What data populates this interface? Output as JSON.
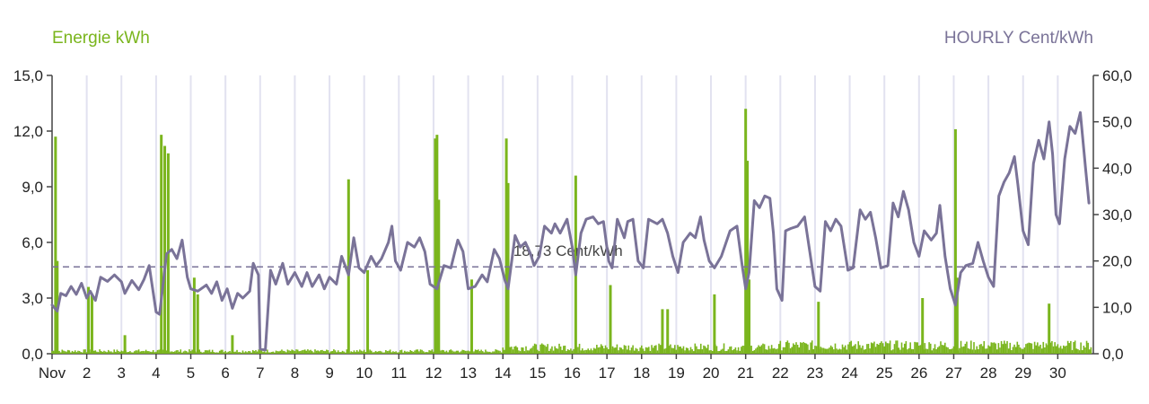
{
  "chart_data": {
    "type": "bar+line",
    "left_axis": {
      "title": "Energie kWh",
      "ticks": [
        "0,0",
        "3,0",
        "6,0",
        "9,0",
        "12,0",
        "15,0"
      ],
      "range": [
        0,
        15
      ]
    },
    "right_axis": {
      "title": "HOURLY Cent/kWh",
      "ticks": [
        "0,0",
        "10,0",
        "20,0",
        "30,0",
        "40,0",
        "50,0",
        "60,0"
      ],
      "range": [
        0,
        60
      ]
    },
    "x_ticks": [
      "Nov",
      "2",
      "3",
      "4",
      "5",
      "6",
      "7",
      "8",
      "9",
      "10",
      "11",
      "12",
      "13",
      "14",
      "15",
      "16",
      "17",
      "18",
      "19",
      "20",
      "21",
      "22",
      "23",
      "24",
      "25",
      "26",
      "27",
      "28",
      "29",
      "30"
    ],
    "average": {
      "value": 18.73,
      "label": "18,73 Cent/kWh"
    },
    "colors": {
      "energy": "#7ab51d",
      "price": "#7a7398",
      "grid": "#e2e2f0",
      "average": "#7a7398"
    },
    "series": [
      {
        "name": "Energie kWh",
        "axis": "left",
        "spikes": [
          {
            "day": 1.1,
            "value": 11.7
          },
          {
            "day": 1.15,
            "value": 5.0
          },
          {
            "day": 2.05,
            "value": 3.6
          },
          {
            "day": 2.15,
            "value": 3.2
          },
          {
            "day": 3.1,
            "value": 1.0
          },
          {
            "day": 4.15,
            "value": 11.8
          },
          {
            "day": 4.25,
            "value": 11.2
          },
          {
            "day": 4.35,
            "value": 10.8
          },
          {
            "day": 5.1,
            "value": 4.1
          },
          {
            "day": 5.2,
            "value": 3.2
          },
          {
            "day": 6.2,
            "value": 1.0
          },
          {
            "day": 9.55,
            "value": 9.4
          },
          {
            "day": 10.1,
            "value": 4.5
          },
          {
            "day": 12.05,
            "value": 11.6
          },
          {
            "day": 12.1,
            "value": 11.8
          },
          {
            "day": 12.15,
            "value": 8.3
          },
          {
            "day": 13.1,
            "value": 4.0
          },
          {
            "day": 14.1,
            "value": 11.6
          },
          {
            "day": 14.15,
            "value": 9.2
          },
          {
            "day": 16.1,
            "value": 9.6
          },
          {
            "day": 17.1,
            "value": 3.7
          },
          {
            "day": 18.6,
            "value": 2.4
          },
          {
            "day": 18.75,
            "value": 2.4
          },
          {
            "day": 20.1,
            "value": 3.2
          },
          {
            "day": 21.0,
            "value": 13.2
          },
          {
            "day": 21.05,
            "value": 10.4
          },
          {
            "day": 21.1,
            "value": 4.0
          },
          {
            "day": 23.1,
            "value": 2.8
          },
          {
            "day": 26.1,
            "value": 3.0
          },
          {
            "day": 27.05,
            "value": 12.1
          },
          {
            "day": 27.1,
            "value": 4.1
          },
          {
            "day": 29.75,
            "value": 2.7
          }
        ]
      },
      {
        "name": "HOURLY Cent/kWh",
        "axis": "right",
        "points": [
          [
            1.0,
            10.5
          ],
          [
            1.15,
            9.2
          ],
          [
            1.25,
            13.0
          ],
          [
            1.4,
            12.5
          ],
          [
            1.55,
            14.5
          ],
          [
            1.7,
            12.8
          ],
          [
            1.85,
            15.2
          ],
          [
            2.0,
            12.0
          ],
          [
            2.1,
            13.5
          ],
          [
            2.25,
            11.5
          ],
          [
            2.4,
            16.5
          ],
          [
            2.6,
            15.6
          ],
          [
            2.8,
            17.0
          ],
          [
            3.0,
            15.5
          ],
          [
            3.1,
            13.0
          ],
          [
            3.3,
            15.8
          ],
          [
            3.5,
            13.8
          ],
          [
            3.65,
            16.0
          ],
          [
            3.8,
            19.0
          ],
          [
            4.0,
            9.0
          ],
          [
            4.1,
            8.5
          ],
          [
            4.3,
            21.5
          ],
          [
            4.45,
            22.5
          ],
          [
            4.6,
            20.5
          ],
          [
            4.75,
            24.5
          ],
          [
            4.9,
            16.5
          ],
          [
            5.0,
            14.0
          ],
          [
            5.2,
            13.5
          ],
          [
            5.45,
            14.8
          ],
          [
            5.6,
            13.0
          ],
          [
            5.75,
            15.5
          ],
          [
            5.9,
            11.5
          ],
          [
            6.05,
            14.0
          ],
          [
            6.2,
            9.8
          ],
          [
            6.35,
            13.0
          ],
          [
            6.5,
            12.0
          ],
          [
            6.7,
            13.5
          ],
          [
            6.8,
            19.5
          ],
          [
            6.95,
            17.0
          ],
          [
            7.0,
            1.0
          ],
          [
            7.15,
            0.8
          ],
          [
            7.3,
            18.0
          ],
          [
            7.45,
            15.0
          ],
          [
            7.65,
            19.5
          ],
          [
            7.8,
            15.0
          ],
          [
            8.0,
            17.5
          ],
          [
            8.2,
            14.5
          ],
          [
            8.35,
            17.5
          ],
          [
            8.5,
            14.5
          ],
          [
            8.7,
            17.0
          ],
          [
            8.85,
            14.0
          ],
          [
            9.0,
            16.5
          ],
          [
            9.2,
            15.0
          ],
          [
            9.35,
            21.0
          ],
          [
            9.55,
            17.0
          ],
          [
            9.7,
            25.0
          ],
          [
            9.85,
            18.5
          ],
          [
            10.0,
            17.5
          ],
          [
            10.2,
            21.0
          ],
          [
            10.35,
            19.0
          ],
          [
            10.5,
            20.5
          ],
          [
            10.7,
            24.0
          ],
          [
            10.8,
            27.5
          ],
          [
            10.9,
            20.0
          ],
          [
            11.05,
            18.0
          ],
          [
            11.25,
            24.0
          ],
          [
            11.45,
            23.0
          ],
          [
            11.6,
            25.0
          ],
          [
            11.75,
            22.0
          ],
          [
            11.9,
            15.0
          ],
          [
            12.1,
            14.0
          ],
          [
            12.3,
            19.0
          ],
          [
            12.5,
            18.5
          ],
          [
            12.7,
            24.5
          ],
          [
            12.85,
            22.0
          ],
          [
            13.0,
            14.0
          ],
          [
            13.2,
            14.5
          ],
          [
            13.4,
            17.0
          ],
          [
            13.55,
            15.5
          ],
          [
            13.75,
            22.5
          ],
          [
            13.9,
            20.5
          ],
          [
            14.05,
            16.0
          ],
          [
            14.15,
            14.0
          ],
          [
            14.35,
            25.5
          ],
          [
            14.5,
            23.0
          ],
          [
            14.65,
            24.0
          ],
          [
            14.8,
            21.5
          ],
          [
            14.9,
            19.0
          ],
          [
            15.05,
            21.0
          ],
          [
            15.2,
            27.5
          ],
          [
            15.4,
            26.0
          ],
          [
            15.5,
            28.0
          ],
          [
            15.65,
            26.0
          ],
          [
            15.85,
            29.0
          ],
          [
            16.0,
            23.0
          ],
          [
            16.1,
            17.0
          ],
          [
            16.25,
            26.0
          ],
          [
            16.4,
            29.0
          ],
          [
            16.6,
            29.5
          ],
          [
            16.75,
            28.0
          ],
          [
            16.9,
            28.5
          ],
          [
            17.05,
            20.0
          ],
          [
            17.15,
            18.5
          ],
          [
            17.3,
            29.0
          ],
          [
            17.5,
            25.0
          ],
          [
            17.6,
            28.5
          ],
          [
            17.75,
            29.0
          ],
          [
            17.9,
            20.0
          ],
          [
            18.05,
            18.5
          ],
          [
            18.2,
            29.0
          ],
          [
            18.45,
            28.0
          ],
          [
            18.6,
            29.0
          ],
          [
            18.75,
            26.0
          ],
          [
            18.9,
            21.0
          ],
          [
            19.05,
            17.5
          ],
          [
            19.2,
            24.0
          ],
          [
            19.4,
            26.0
          ],
          [
            19.55,
            25.0
          ],
          [
            19.7,
            29.5
          ],
          [
            19.8,
            24.5
          ],
          [
            19.95,
            20.0
          ],
          [
            20.1,
            18.5
          ],
          [
            20.3,
            21.0
          ],
          [
            20.55,
            26.5
          ],
          [
            20.75,
            27.5
          ],
          [
            20.9,
            19.0
          ],
          [
            21.0,
            14.0
          ],
          [
            21.1,
            17.5
          ],
          [
            21.25,
            33.0
          ],
          [
            21.4,
            31.5
          ],
          [
            21.55,
            34.0
          ],
          [
            21.7,
            33.5
          ],
          [
            21.8,
            26.0
          ],
          [
            21.9,
            14.0
          ],
          [
            22.05,
            11.5
          ],
          [
            22.15,
            26.5
          ],
          [
            22.3,
            27.0
          ],
          [
            22.5,
            27.5
          ],
          [
            22.7,
            29.5
          ],
          [
            22.85,
            22.0
          ],
          [
            23.0,
            14.5
          ],
          [
            23.15,
            13.5
          ],
          [
            23.3,
            28.5
          ],
          [
            23.45,
            26.5
          ],
          [
            23.6,
            29.0
          ],
          [
            23.75,
            27.5
          ],
          [
            23.95,
            18.0
          ],
          [
            24.1,
            18.5
          ],
          [
            24.3,
            31.0
          ],
          [
            24.45,
            29.0
          ],
          [
            24.6,
            30.5
          ],
          [
            24.75,
            25.0
          ],
          [
            24.9,
            18.5
          ],
          [
            25.1,
            19.0
          ],
          [
            25.25,
            32.5
          ],
          [
            25.4,
            29.5
          ],
          [
            25.55,
            35.0
          ],
          [
            25.7,
            31.0
          ],
          [
            25.85,
            24.0
          ],
          [
            26.0,
            21.0
          ],
          [
            26.15,
            26.5
          ],
          [
            26.35,
            24.5
          ],
          [
            26.5,
            26.0
          ],
          [
            26.6,
            32.0
          ],
          [
            26.75,
            21.0
          ],
          [
            26.9,
            14.0
          ],
          [
            27.05,
            10.5
          ],
          [
            27.2,
            17.5
          ],
          [
            27.35,
            19.0
          ],
          [
            27.55,
            19.5
          ],
          [
            27.7,
            24.0
          ],
          [
            27.85,
            20.0
          ],
          [
            28.0,
            16.5
          ],
          [
            28.15,
            14.5
          ],
          [
            28.3,
            34.0
          ],
          [
            28.45,
            37.0
          ],
          [
            28.6,
            39.0
          ],
          [
            28.75,
            42.5
          ],
          [
            28.85,
            36.5
          ],
          [
            29.0,
            26.5
          ],
          [
            29.15,
            23.5
          ],
          [
            29.3,
            41.0
          ],
          [
            29.45,
            46.0
          ],
          [
            29.6,
            42.0
          ],
          [
            29.75,
            50.0
          ],
          [
            29.85,
            43.0
          ],
          [
            29.95,
            30.0
          ],
          [
            30.05,
            28.0
          ],
          [
            30.2,
            42.0
          ],
          [
            30.35,
            49.0
          ],
          [
            30.5,
            47.5
          ],
          [
            30.65,
            52.0
          ],
          [
            30.8,
            40.0
          ],
          [
            30.9,
            32.5
          ]
        ]
      }
    ]
  }
}
